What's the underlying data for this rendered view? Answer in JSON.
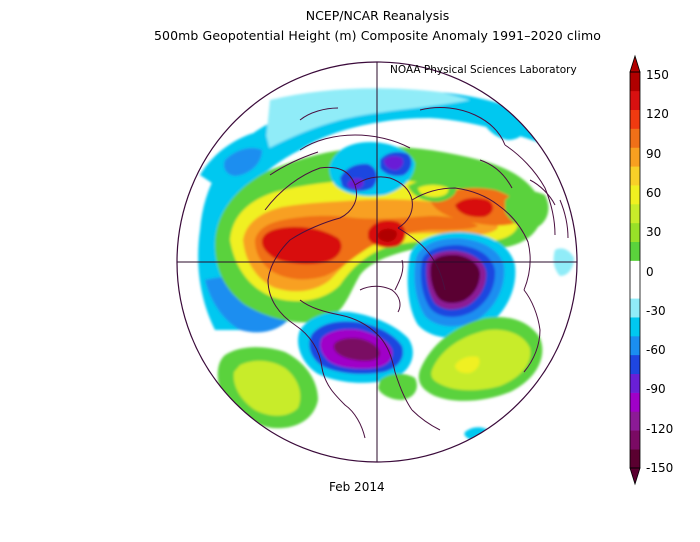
{
  "header": {
    "line1": "NCEP/NCAR Reanalysis",
    "line2": "500mb Geopotential Height (m) Composite Anomaly 1991–2020 climo",
    "credit": "NOAA Physical Sciences Laboratory"
  },
  "footer": {
    "period": "Feb 2014"
  },
  "colorbar": {
    "ticks": [
      "150",
      "120",
      "90",
      "60",
      "30",
      "0",
      "-30",
      "-60",
      "-90",
      "-120",
      "-150"
    ],
    "colors": [
      "#5a0030",
      "#7a0a64",
      "#8c1a96",
      "#a000c8",
      "#6a1fd6",
      "#1e46e0",
      "#1a8ef0",
      "#00c8f0",
      "#90ecf8",
      "#ffffff",
      "#ffffff",
      "#5ad23c",
      "#98e028",
      "#c8ec2a",
      "#f0f020",
      "#f8d028",
      "#f8a020",
      "#f07018",
      "#f03a10",
      "#d81010",
      "#b00000"
    ]
  }
}
